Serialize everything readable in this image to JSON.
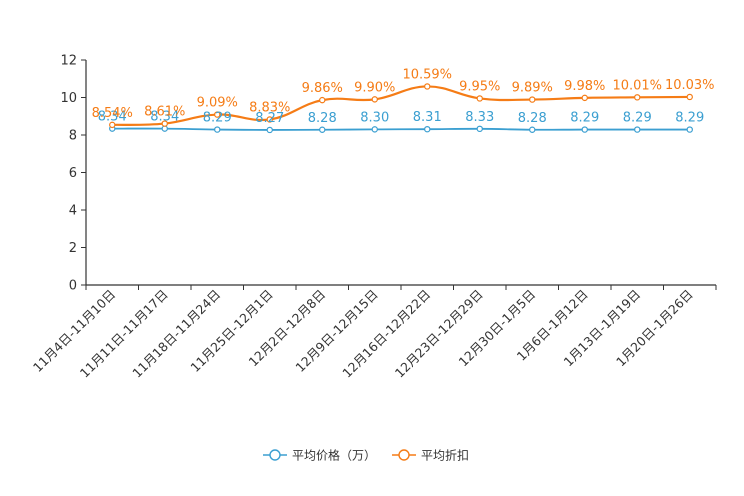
{
  "chart_data": {
    "type": "line",
    "title": "",
    "xlabel": "",
    "ylabel": "",
    "ylim": [
      0,
      12
    ],
    "yticks": [
      0,
      2,
      4,
      6,
      8,
      10,
      12
    ],
    "categories": [
      "11月4日-11月10日",
      "11月11日-11月17日",
      "11月18日-11月24日",
      "11月25日-12月1日",
      "12月2日-12月8日",
      "12月9日-12月15日",
      "12月16日-12月22日",
      "12月23日-12月29日",
      "12月30日-1月5日",
      "1月6日-1月12日",
      "1月13日-1月19日",
      "1月20日-1月26日"
    ],
    "series": [
      {
        "name": "平均价格（万）",
        "color": "#3b9fd1",
        "values": [
          8.34,
          8.34,
          8.29,
          8.27,
          8.28,
          8.3,
          8.31,
          8.33,
          8.28,
          8.29,
          8.29,
          8.29
        ],
        "labels": [
          "8.34",
          "8.34",
          "8.29",
          "8.27",
          "8.28",
          "8.30",
          "8.31",
          "8.33",
          "8.28",
          "8.29",
          "8.29",
          "8.29"
        ]
      },
      {
        "name": "平均折扣",
        "color": "#f57c16",
        "values": [
          8.54,
          8.61,
          9.09,
          8.83,
          9.86,
          9.9,
          10.59,
          9.95,
          9.89,
          9.98,
          10.01,
          10.03
        ],
        "labels": [
          "8.54%",
          "8.61%",
          "9.09%",
          "8.83%",
          "9.86%",
          "9.90%",
          "10.59%",
          "9.95%",
          "9.89%",
          "9.98%",
          "10.01%",
          "10.03%"
        ]
      }
    ],
    "grid": false,
    "legend_position": "bottom-center"
  }
}
